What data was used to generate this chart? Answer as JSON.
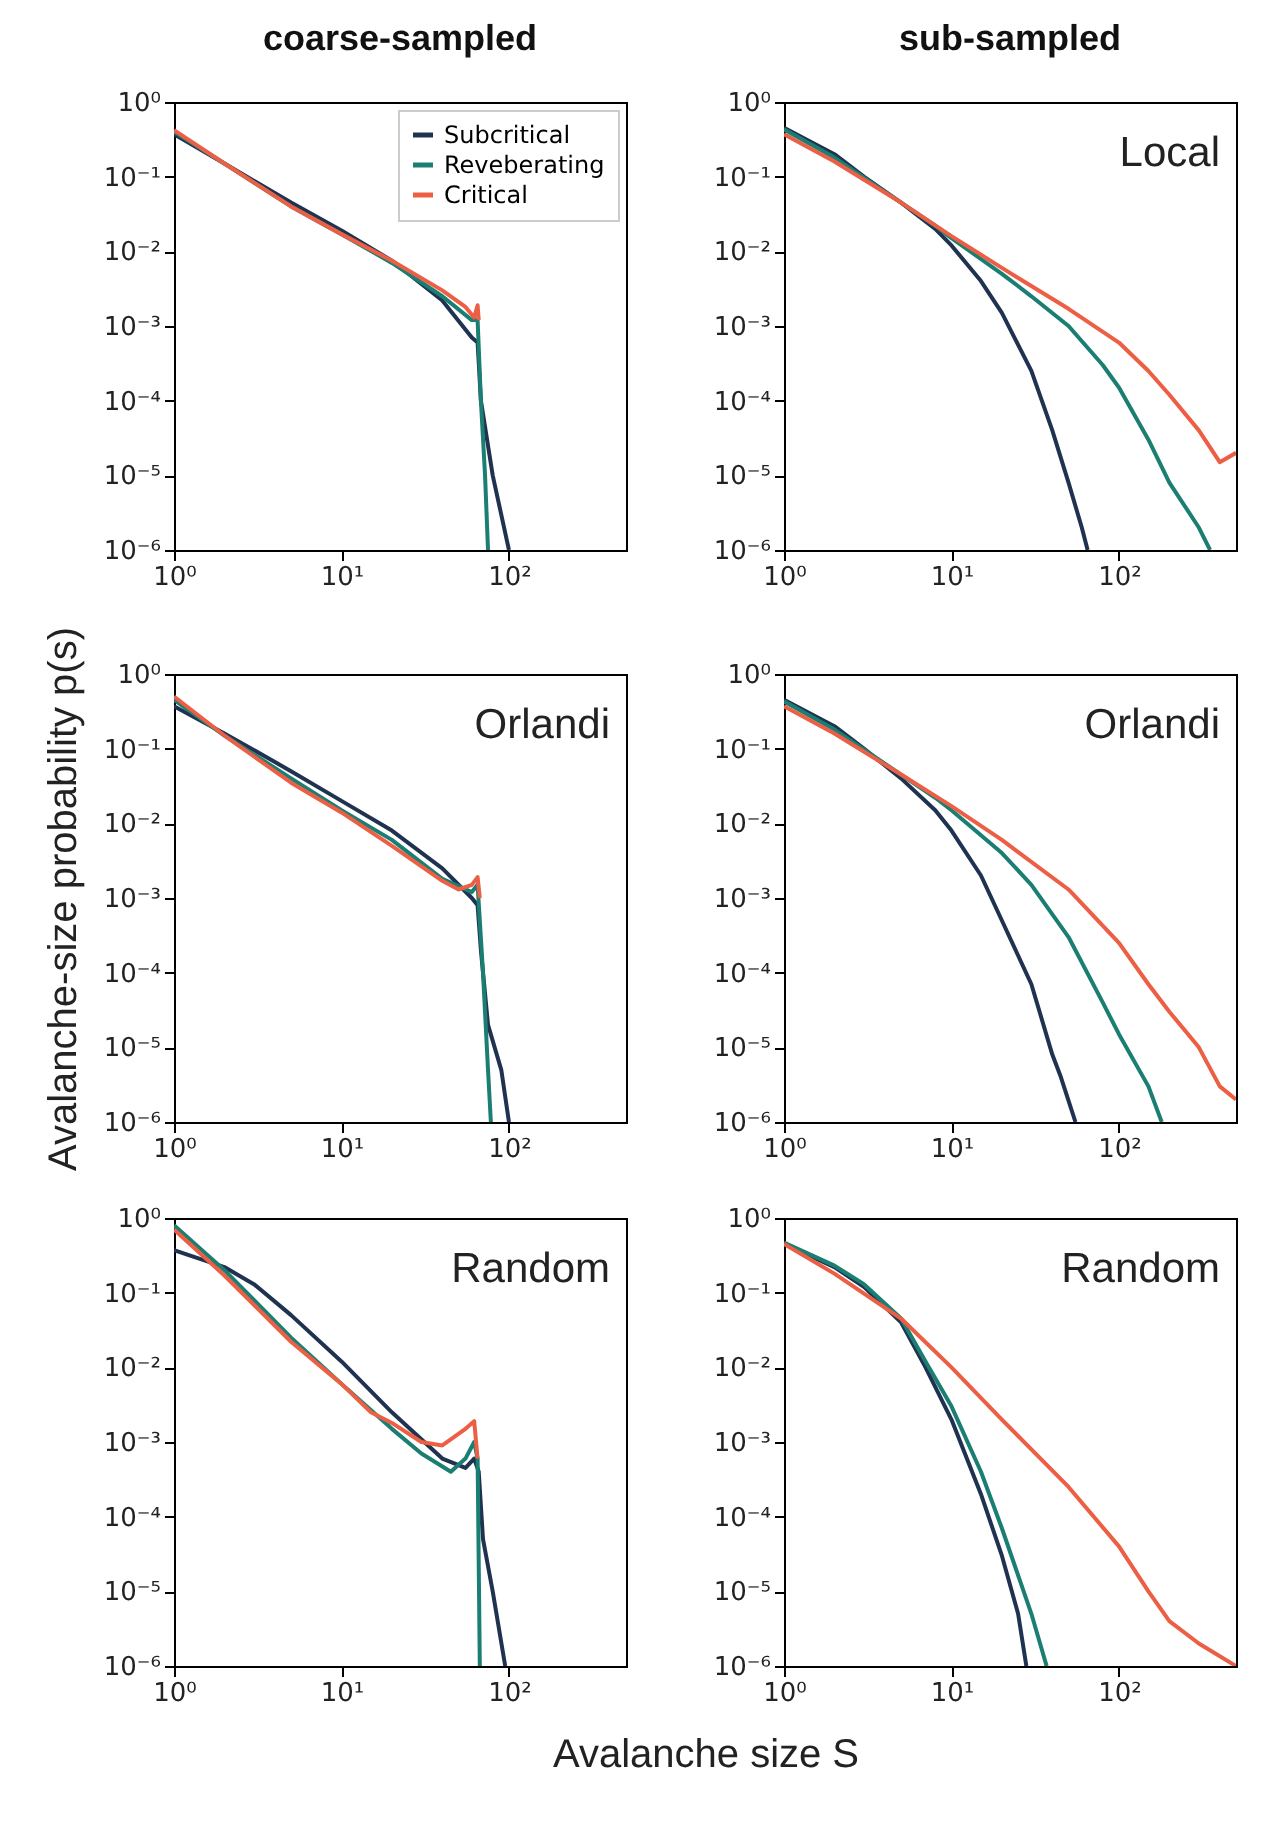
{
  "chart_data": [
    {
      "type": "line",
      "title": "coarse-sampled",
      "legend": "top right",
      "log": "xy",
      "xlim": [
        1,
        500
      ],
      "ylim": [
        1e-06,
        1
      ],
      "xticks": [
        {
          "value": 1,
          "label": "10⁰"
        },
        {
          "value": 10,
          "label": "10¹"
        },
        {
          "value": 100,
          "label": "10²"
        }
      ],
      "yticks": [
        {
          "value": 1e-06,
          "label": "10⁻⁶"
        },
        {
          "value": 1e-05,
          "label": "10⁻⁵"
        },
        {
          "value": 0.0001,
          "label": "10⁻⁴"
        },
        {
          "value": 0.001,
          "label": "10⁻³"
        },
        {
          "value": 0.01,
          "label": "10⁻²"
        },
        {
          "value": 0.1,
          "label": "10⁻¹"
        },
        {
          "value": 1,
          "label": "10⁰"
        }
      ],
      "series": [
        {
          "name": "Subcritical",
          "color": "#1f3350",
          "x": [
            1,
            2,
            5,
            10,
            20,
            40,
            60,
            65,
            68,
            80,
            100
          ],
          "values": [
            0.37,
            0.15,
            0.045,
            0.019,
            0.0075,
            0.0022,
            0.0007,
            0.0006,
            0.0001,
            1e-05,
            1e-06
          ]
        },
        {
          "name": "Reveberating",
          "color": "#1a7f72",
          "x": [
            1,
            2,
            5,
            10,
            20,
            40,
            60,
            65,
            68,
            72,
            75
          ],
          "values": [
            0.4,
            0.15,
            0.04,
            0.017,
            0.007,
            0.0025,
            0.0012,
            0.0012,
            0.0001,
            1e-05,
            1e-06
          ]
        },
        {
          "name": "Critical",
          "color": "#ec5f45",
          "x": [
            1,
            2,
            5,
            10,
            20,
            40,
            55,
            62,
            65,
            66
          ],
          "values": [
            0.42,
            0.15,
            0.04,
            0.017,
            0.0075,
            0.003,
            0.0018,
            0.0013,
            0.0019,
            0.0012
          ]
        }
      ]
    },
    {
      "type": "line",
      "title": "sub-sampled",
      "annotations": [
        "Local"
      ],
      "log": "xy",
      "xlim": [
        1,
        500
      ],
      "ylim": [
        1e-06,
        1
      ],
      "xticks": [
        {
          "value": 1,
          "label": "10⁰"
        },
        {
          "value": 10,
          "label": "10¹"
        },
        {
          "value": 100,
          "label": "10²"
        }
      ],
      "yticks": [
        {
          "value": 1e-06,
          "label": "10⁻⁶"
        },
        {
          "value": 1e-05,
          "label": "10⁻⁵"
        },
        {
          "value": 0.0001,
          "label": "10⁻⁴"
        },
        {
          "value": 0.001,
          "label": "10⁻³"
        },
        {
          "value": 0.01,
          "label": "10⁻²"
        },
        {
          "value": 0.1,
          "label": "10⁻¹"
        },
        {
          "value": 1,
          "label": "10⁰"
        }
      ],
      "series": [
        {
          "color": "#1f3350",
          "x": [
            1,
            2,
            3,
            5,
            8,
            10,
            15,
            20,
            30,
            40,
            50,
            60,
            65
          ],
          "values": [
            0.45,
            0.2,
            0.1,
            0.045,
            0.02,
            0.012,
            0.004,
            0.0015,
            0.00025,
            4e-05,
            8e-06,
            2e-06,
            1e-06
          ]
        },
        {
          "color": "#1a7f72",
          "x": [
            1,
            2,
            5,
            8,
            10,
            20,
            30,
            50,
            80,
            100,
            150,
            200,
            300,
            350
          ],
          "values": [
            0.43,
            0.18,
            0.045,
            0.022,
            0.015,
            0.005,
            0.0025,
            0.001,
            0.0003,
            0.00015,
            3e-05,
            8e-06,
            2e-06,
            1e-06
          ]
        },
        {
          "color": "#ec5f45",
          "x": [
            1,
            2,
            5,
            10,
            20,
            50,
            100,
            150,
            200,
            300,
            400,
            500
          ],
          "values": [
            0.37,
            0.16,
            0.045,
            0.016,
            0.006,
            0.0017,
            0.0006,
            0.00025,
            0.00012,
            4e-05,
            1.5e-05,
            2e-05
          ]
        }
      ]
    },
    {
      "type": "line",
      "ylabel": "Avalanche-size probability p(s)",
      "annotations": [
        "Orlandi"
      ],
      "log": "xy",
      "xlim": [
        1,
        500
      ],
      "ylim": [
        1e-06,
        1
      ],
      "xticks": [
        {
          "value": 1,
          "label": "10⁰"
        },
        {
          "value": 10,
          "label": "10¹"
        },
        {
          "value": 100,
          "label": "10²"
        }
      ],
      "yticks": [
        {
          "value": 1e-06,
          "label": "10⁻⁶"
        },
        {
          "value": 1e-05,
          "label": "10⁻⁵"
        },
        {
          "value": 0.0001,
          "label": "10⁻⁴"
        },
        {
          "value": 0.001,
          "label": "10⁻³"
        },
        {
          "value": 0.01,
          "label": "10⁻²"
        },
        {
          "value": 0.1,
          "label": "10⁻¹"
        },
        {
          "value": 1,
          "label": "10⁰"
        }
      ],
      "series": [
        {
          "color": "#1f3350",
          "x": [
            1,
            2,
            5,
            10,
            20,
            40,
            60,
            65,
            68,
            75,
            90,
            100
          ],
          "values": [
            0.37,
            0.16,
            0.05,
            0.02,
            0.008,
            0.0025,
            0.001,
            0.0008,
            0.0002,
            2e-05,
            5e-06,
            1e-06
          ]
        },
        {
          "color": "#1a7f72",
          "x": [
            1,
            2,
            5,
            10,
            20,
            40,
            60,
            65,
            70,
            75,
            78
          ],
          "values": [
            0.45,
            0.15,
            0.04,
            0.015,
            0.006,
            0.0018,
            0.0012,
            0.0015,
            0.0001,
            5e-06,
            1e-06
          ]
        },
        {
          "color": "#ec5f45",
          "x": [
            1,
            2,
            5,
            10,
            20,
            40,
            50,
            60,
            65,
            67
          ],
          "values": [
            0.5,
            0.15,
            0.035,
            0.014,
            0.005,
            0.0017,
            0.0013,
            0.0015,
            0.0019,
            0.001
          ]
        }
      ]
    },
    {
      "type": "line",
      "annotations": [
        "Orlandi"
      ],
      "log": "xy",
      "xlim": [
        1,
        500
      ],
      "ylim": [
        1e-06,
        1
      ],
      "xticks": [
        {
          "value": 1,
          "label": "10⁰"
        },
        {
          "value": 10,
          "label": "10¹"
        },
        {
          "value": 100,
          "label": "10²"
        }
      ],
      "yticks": [
        {
          "value": 1e-06,
          "label": "10⁻⁶"
        },
        {
          "value": 1e-05,
          "label": "10⁻⁵"
        },
        {
          "value": 0.0001,
          "label": "10⁻⁴"
        },
        {
          "value": 0.001,
          "label": "10⁻³"
        },
        {
          "value": 0.01,
          "label": "10⁻²"
        },
        {
          "value": 0.1,
          "label": "10⁻¹"
        },
        {
          "value": 1,
          "label": "10⁰"
        }
      ],
      "series": [
        {
          "color": "#1f3350",
          "x": [
            1,
            2,
            3,
            5,
            8,
            10,
            15,
            20,
            30,
            40,
            45,
            55
          ],
          "values": [
            0.45,
            0.2,
            0.1,
            0.04,
            0.015,
            0.008,
            0.002,
            0.0005,
            7e-05,
            8e-06,
            4e-06,
            1e-06
          ]
        },
        {
          "color": "#1a7f72",
          "x": [
            1,
            2,
            5,
            8,
            10,
            20,
            30,
            50,
            80,
            100,
            150,
            180
          ],
          "values": [
            0.43,
            0.18,
            0.045,
            0.022,
            0.015,
            0.004,
            0.0015,
            0.0003,
            4e-05,
            1.5e-05,
            3e-06,
            1e-06
          ]
        },
        {
          "color": "#ec5f45",
          "x": [
            1,
            2,
            5,
            10,
            20,
            50,
            100,
            150,
            200,
            300,
            400,
            500
          ],
          "values": [
            0.37,
            0.16,
            0.045,
            0.017,
            0.006,
            0.0013,
            0.00025,
            7e-05,
            3e-05,
            1e-05,
            3e-06,
            2e-06
          ]
        }
      ]
    },
    {
      "type": "line",
      "xlabel": "Avalanche size S",
      "annotations": [
        "Random"
      ],
      "log": "xy",
      "xlim": [
        1,
        500
      ],
      "ylim": [
        1e-06,
        1
      ],
      "xticks": [
        {
          "value": 1,
          "label": "10⁰"
        },
        {
          "value": 10,
          "label": "10¹"
        },
        {
          "value": 100,
          "label": "10²"
        }
      ],
      "yticks": [
        {
          "value": 1e-06,
          "label": "10⁻⁶"
        },
        {
          "value": 1e-05,
          "label": "10⁻⁵"
        },
        {
          "value": 0.0001,
          "label": "10⁻⁴"
        },
        {
          "value": 0.001,
          "label": "10⁻³"
        },
        {
          "value": 0.01,
          "label": "10⁻²"
        },
        {
          "value": 0.1,
          "label": "10⁻¹"
        },
        {
          "value": 1,
          "label": "10⁰"
        }
      ],
      "series": [
        {
          "color": "#1f3350",
          "x": [
            1,
            2,
            3,
            5,
            10,
            20,
            40,
            55,
            62,
            66,
            70,
            80,
            95
          ],
          "values": [
            0.37,
            0.22,
            0.13,
            0.05,
            0.012,
            0.0025,
            0.0006,
            0.00045,
            0.0006,
            0.0004,
            5e-05,
            1e-05,
            1e-06
          ]
        },
        {
          "color": "#1a7f72",
          "x": [
            1,
            2,
            3,
            5,
            10,
            20,
            30,
            45,
            55,
            62,
            65,
            67
          ],
          "values": [
            0.8,
            0.2,
            0.08,
            0.025,
            0.006,
            0.0015,
            0.0007,
            0.0004,
            0.0006,
            0.001,
            0.0006,
            1e-06
          ]
        },
        {
          "color": "#ec5f45",
          "x": [
            1,
            2,
            5,
            10,
            15,
            20,
            30,
            40,
            55,
            62,
            65
          ],
          "values": [
            0.7,
            0.17,
            0.022,
            0.006,
            0.0025,
            0.0018,
            0.001,
            0.0009,
            0.0015,
            0.0019,
            0.0006
          ]
        }
      ]
    },
    {
      "type": "line",
      "annotations": [
        "Random"
      ],
      "log": "xy",
      "xlim": [
        1,
        500
      ],
      "ylim": [
        1e-06,
        1
      ],
      "xticks": [
        {
          "value": 1,
          "label": "10⁰"
        },
        {
          "value": 10,
          "label": "10¹"
        },
        {
          "value": 100,
          "label": "10²"
        }
      ],
      "yticks": [
        {
          "value": 1e-06,
          "label": "10⁻⁶"
        },
        {
          "value": 1e-05,
          "label": "10⁻⁵"
        },
        {
          "value": 0.0001,
          "label": "10⁻⁴"
        },
        {
          "value": 0.001,
          "label": "10⁻³"
        },
        {
          "value": 0.01,
          "label": "10⁻²"
        },
        {
          "value": 0.1,
          "label": "10⁻¹"
        },
        {
          "value": 1,
          "label": "10⁰"
        }
      ],
      "series": [
        {
          "color": "#1f3350",
          "x": [
            1,
            2,
            3,
            5,
            7,
            10,
            15,
            20,
            25,
            28
          ],
          "values": [
            0.45,
            0.22,
            0.12,
            0.04,
            0.01,
            0.002,
            0.0002,
            3e-05,
            5e-06,
            1e-06
          ]
        },
        {
          "color": "#1a7f72",
          "x": [
            1,
            2,
            3,
            5,
            7,
            10,
            15,
            20,
            30,
            37
          ],
          "values": [
            0.47,
            0.23,
            0.13,
            0.045,
            0.012,
            0.003,
            0.0004,
            7e-05,
            5e-06,
            1e-06
          ]
        },
        {
          "color": "#ec5f45",
          "x": [
            1,
            2,
            5,
            10,
            20,
            50,
            100,
            150,
            200,
            300,
            500
          ],
          "values": [
            0.45,
            0.18,
            0.045,
            0.01,
            0.002,
            0.00025,
            4e-05,
            1e-05,
            4e-06,
            2e-06,
            1e-06
          ]
        }
      ]
    }
  ]
}
